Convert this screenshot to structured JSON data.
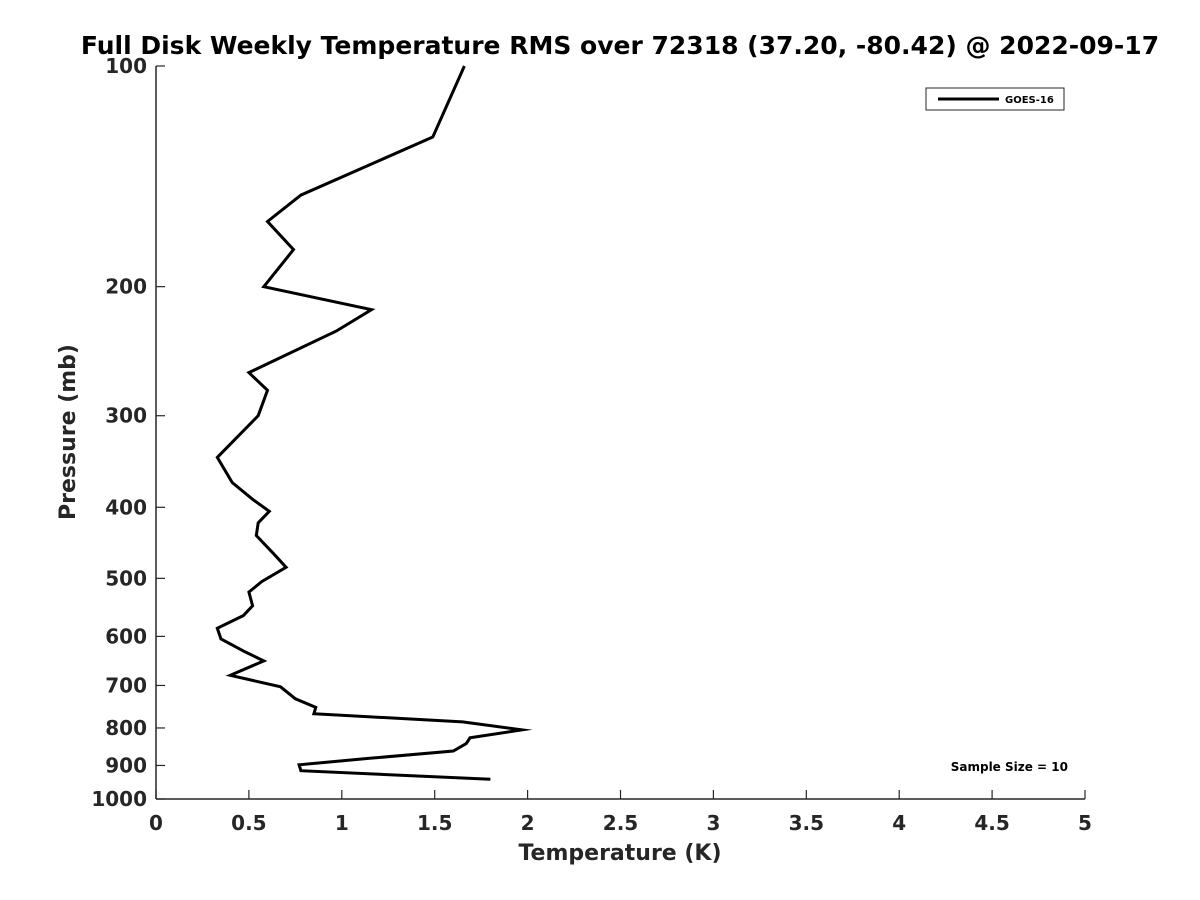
{
  "chart_data": {
    "type": "line",
    "title": "Full Disk Weekly Temperature RMS over 72318 (37.20, -80.42) @ 2022-09-17",
    "xlabel": "Temperature (K)",
    "ylabel": "Pressure (mb)",
    "xlim": [
      0,
      5
    ],
    "ylim": [
      100,
      1000
    ],
    "y_scale": "log",
    "y_reversed": true,
    "grid": false,
    "legend_position": "top-right",
    "x_ticks": [
      0,
      0.5,
      1,
      1.5,
      2,
      2.5,
      3,
      3.5,
      4,
      4.5,
      5
    ],
    "x_tick_labels": [
      "0",
      "0.5",
      "1",
      "1.5",
      "2",
      "2.5",
      "3",
      "3.5",
      "4",
      "4.5",
      "5"
    ],
    "y_ticks": [
      100,
      200,
      300,
      400,
      500,
      600,
      700,
      800,
      900,
      1000
    ],
    "y_tick_labels": [
      "100",
      "200",
      "300",
      "400",
      "500",
      "600",
      "700",
      "800",
      "900",
      "1000"
    ],
    "series": [
      {
        "name": "GOES-16",
        "color": "#000000",
        "points": [
          [
            1.66,
            100
          ],
          [
            1.49,
            125
          ],
          [
            0.78,
            150
          ],
          [
            0.6,
            163
          ],
          [
            0.74,
            178
          ],
          [
            0.58,
            200
          ],
          [
            1.16,
            215
          ],
          [
            0.97,
            230
          ],
          [
            0.5,
            262
          ],
          [
            0.6,
            277
          ],
          [
            0.55,
            300
          ],
          [
            0.33,
            342
          ],
          [
            0.41,
            370
          ],
          [
            0.52,
            390
          ],
          [
            0.61,
            405
          ],
          [
            0.55,
            420
          ],
          [
            0.54,
            437
          ],
          [
            0.63,
            462
          ],
          [
            0.7,
            483
          ],
          [
            0.57,
            505
          ],
          [
            0.5,
            522
          ],
          [
            0.52,
            545
          ],
          [
            0.47,
            562
          ],
          [
            0.33,
            585
          ],
          [
            0.35,
            605
          ],
          [
            0.48,
            630
          ],
          [
            0.58,
            648
          ],
          [
            0.4,
            678
          ],
          [
            0.67,
            703
          ],
          [
            0.75,
            730
          ],
          [
            0.86,
            750
          ],
          [
            0.85,
            765
          ],
          [
            1.65,
            785
          ],
          [
            1.97,
            805
          ],
          [
            1.69,
            825
          ],
          [
            1.67,
            840
          ],
          [
            1.6,
            860
          ],
          [
            1.15,
            880
          ],
          [
            0.77,
            898
          ],
          [
            0.78,
            915
          ],
          [
            1.8,
            940
          ]
        ]
      }
    ],
    "annotations": [
      "Sample Size = 10"
    ]
  }
}
